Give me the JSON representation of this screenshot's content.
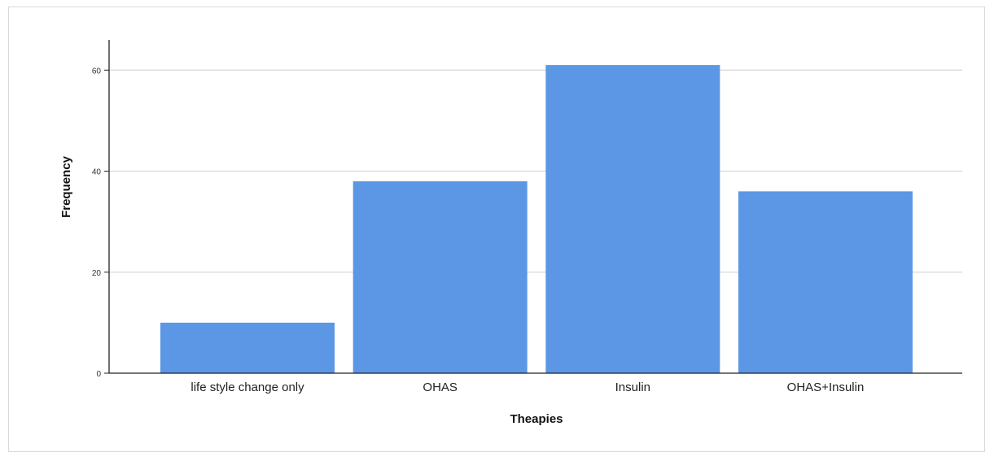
{
  "chart_data": {
    "type": "bar",
    "categories": [
      "life style change only",
      "OHAS",
      "Insulin",
      "OHAS+Insulin"
    ],
    "values": [
      10,
      38,
      61,
      36
    ],
    "title": "",
    "xlabel": "Theapies",
    "ylabel": "Frequency",
    "ylim": [
      0,
      66
    ],
    "yticks": [
      0,
      20,
      40,
      60
    ],
    "grid": true,
    "bar_color": "#5b97e5",
    "grid_color": "#d8d8d8",
    "axis_color": "#222222"
  }
}
